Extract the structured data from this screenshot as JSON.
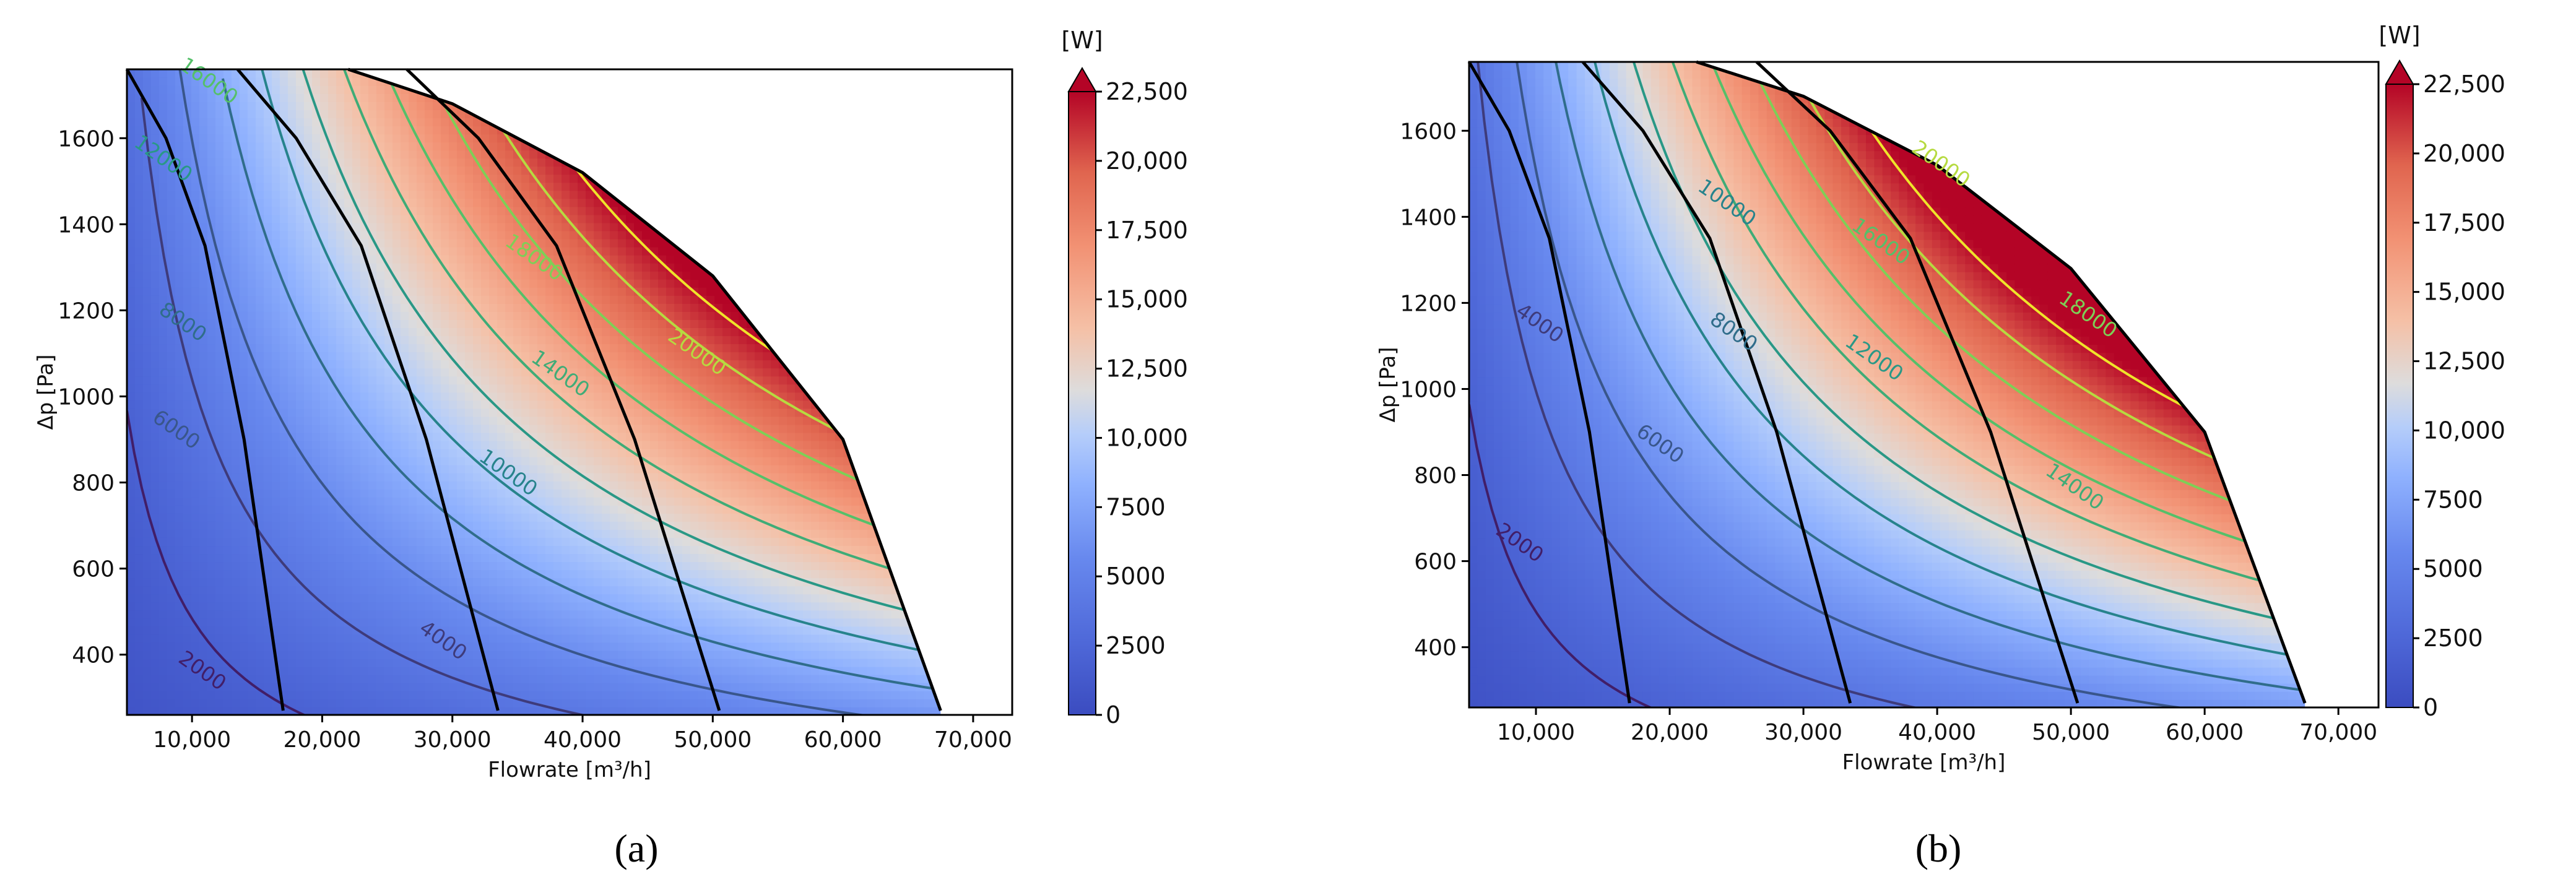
{
  "chart_data": [
    {
      "type": "heatmap",
      "panel": "(a)",
      "xlabel": "Flowrate [m³/h]",
      "ylabel": "Δp [Pa]",
      "xlim": [
        5000,
        73000
      ],
      "ylim": [
        260,
        1760
      ],
      "xticks": [
        10000,
        20000,
        30000,
        40000,
        50000,
        60000,
        70000
      ],
      "xtick_labels": [
        "10,000",
        "20,000",
        "30,000",
        "40,000",
        "50,000",
        "60,000",
        "70,000"
      ],
      "yticks": [
        400,
        600,
        800,
        1000,
        1200,
        1400,
        1600
      ],
      "ytick_labels": [
        "400",
        "600",
        "800",
        "1000",
        "1200",
        "1400",
        "1600"
      ],
      "colorbar": {
        "unit": "[W]",
        "range": [
          0,
          22500
        ],
        "ticks": [
          0,
          2500,
          5000,
          7500,
          10000,
          12500,
          15000,
          17500,
          20000,
          22500
        ],
        "tick_labels": [
          "0",
          "2500",
          "5000",
          "7500",
          "10,000",
          "12,500",
          "15,000",
          "17,500",
          "20,000",
          "22,500"
        ]
      },
      "envelope": [
        [
          22000,
          1760
        ],
        [
          30000,
          1680
        ],
        [
          40000,
          1520
        ],
        [
          50000,
          1280
        ],
        [
          60000,
          900
        ],
        [
          67500,
          270
        ]
      ],
      "system_curves": [
        [
          [
            5000,
            1760
          ],
          [
            8000,
            1600
          ],
          [
            11000,
            1350
          ],
          [
            14000,
            900
          ],
          [
            17000,
            270
          ]
        ],
        [
          [
            13500,
            1760
          ],
          [
            18000,
            1600
          ],
          [
            23000,
            1350
          ],
          [
            28000,
            900
          ],
          [
            33500,
            270
          ]
        ],
        [
          [
            26500,
            1760
          ],
          [
            32000,
            1600
          ],
          [
            38000,
            1350
          ],
          [
            44000,
            900
          ],
          [
            50500,
            270
          ]
        ]
      ],
      "contour_levels": [
        2000,
        4000,
        6000,
        8000,
        10000,
        12000,
        14000,
        16000,
        18000,
        20000,
        22000
      ],
      "contour_labels": [
        {
          "text": "2000",
          "x": 10500,
          "y": 350
        },
        {
          "text": "4000",
          "x": 29000,
          "y": 420
        },
        {
          "text": "6000",
          "x": 8500,
          "y": 910
        },
        {
          "text": "8000",
          "x": 9000,
          "y": 1160
        },
        {
          "text": "10000",
          "x": 34000,
          "y": 810
        },
        {
          "text": "12000",
          "x": 7500,
          "y": 1540
        },
        {
          "text": "14000",
          "x": 38000,
          "y": 1040
        },
        {
          "text": "16000",
          "x": 11000,
          "y": 1720
        },
        {
          "text": "18000",
          "x": 36000,
          "y": 1310
        },
        {
          "text": "20000",
          "x": 48500,
          "y": 1090
        }
      ]
    },
    {
      "type": "heatmap",
      "panel": "(b)",
      "xlabel": "Flowrate [m³/h]",
      "ylabel": "Δp [Pa]",
      "xlim": [
        5000,
        73000
      ],
      "ylim": [
        260,
        1760
      ],
      "xticks": [
        10000,
        20000,
        30000,
        40000,
        50000,
        60000,
        70000
      ],
      "xtick_labels": [
        "10,000",
        "20,000",
        "30,000",
        "40,000",
        "50,000",
        "60,000",
        "70,000"
      ],
      "yticks": [
        400,
        600,
        800,
        1000,
        1200,
        1400,
        1600
      ],
      "ytick_labels": [
        "400",
        "600",
        "800",
        "1000",
        "1200",
        "1400",
        "1600"
      ],
      "colorbar": {
        "unit": "[W]",
        "range": [
          0,
          22500
        ],
        "ticks": [
          0,
          2500,
          5000,
          7500,
          10000,
          12500,
          15000,
          17500,
          20000,
          22500
        ],
        "tick_labels": [
          "0",
          "2500",
          "5000",
          "7500",
          "10,000",
          "12,500",
          "15,000",
          "17,500",
          "20,000",
          "22,500"
        ]
      },
      "envelope": [
        [
          22000,
          1760
        ],
        [
          30000,
          1680
        ],
        [
          40000,
          1520
        ],
        [
          50000,
          1280
        ],
        [
          60000,
          900
        ],
        [
          67500,
          270
        ]
      ],
      "system_curves": [
        [
          [
            5000,
            1760
          ],
          [
            8000,
            1600
          ],
          [
            11000,
            1350
          ],
          [
            14000,
            900
          ],
          [
            17000,
            270
          ]
        ],
        [
          [
            13500,
            1760
          ],
          [
            18000,
            1600
          ],
          [
            23000,
            1350
          ],
          [
            28000,
            900
          ],
          [
            33500,
            270
          ]
        ],
        [
          [
            26500,
            1760
          ],
          [
            32000,
            1600
          ],
          [
            38000,
            1350
          ],
          [
            44000,
            900
          ],
          [
            50500,
            270
          ]
        ]
      ],
      "contour_levels": [
        2000,
        4000,
        6000,
        8000,
        10000,
        12000,
        14000,
        16000,
        18000,
        20000,
        22000
      ],
      "contour_labels": [
        {
          "text": "2000",
          "x": 8500,
          "y": 630
        },
        {
          "text": "4000",
          "x": 10000,
          "y": 1140
        },
        {
          "text": "6000",
          "x": 19000,
          "y": 860
        },
        {
          "text": "8000",
          "x": 24500,
          "y": 1120
        },
        {
          "text": "10000",
          "x": 24000,
          "y": 1420
        },
        {
          "text": "12000",
          "x": 35000,
          "y": 1060
        },
        {
          "text": "14000",
          "x": 50000,
          "y": 760
        },
        {
          "text": "16000",
          "x": 35500,
          "y": 1330
        },
        {
          "text": "18000",
          "x": 51000,
          "y": 1160
        },
        {
          "text": "20000",
          "x": 40000,
          "y": 1510
        }
      ]
    }
  ]
}
